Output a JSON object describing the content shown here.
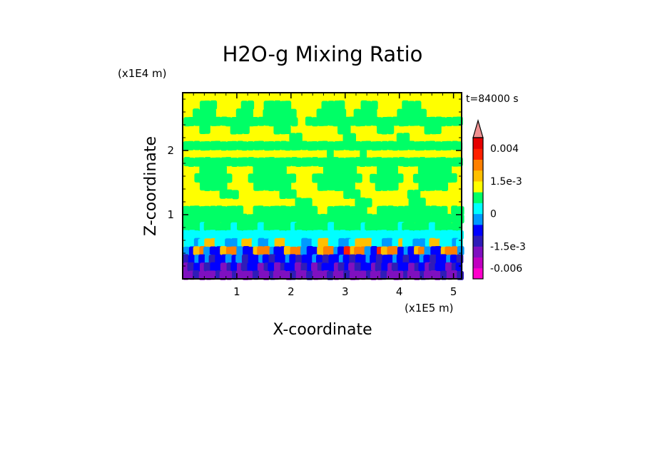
{
  "chart_data": {
    "type": "heatmap",
    "title": "H2O-g Mixing Ratio",
    "xlabel": "X-coordinate",
    "ylabel": "Z-coordinate",
    "x_unit": "(x1E5 m)",
    "y_unit": "(x1E4 m)",
    "time_label": "t=84000 s",
    "xlim": [
      0.0,
      5.15
    ],
    "ylim": [
      0.0,
      2.9
    ],
    "x_ticks": [
      1,
      2,
      3,
      4,
      5
    ],
    "x_tick_labels": [
      "1",
      "2",
      "3",
      "4",
      "5"
    ],
    "y_ticks": [
      1,
      2
    ],
    "y_tick_labels": [
      "1",
      "2"
    ],
    "colorbar": {
      "labels": [
        "0.004",
        "1.5e-3",
        "0",
        "-1.5e-3",
        "-0.006"
      ],
      "label_levels": [
        0.004,
        0.0015,
        0,
        -0.0015,
        -0.006
      ],
      "levels": [
        -0.009,
        -0.006,
        -0.003,
        -0.0015,
        -0.001,
        -0.0005,
        0,
        0.0005,
        0.001,
        0.0015,
        0.002,
        0.003,
        0.004,
        0.005
      ],
      "colors": [
        "#ff00cc",
        "#c000c0",
        "#7f10c0",
        "#2f1cb8",
        "#0000ff",
        "#0099ff",
        "#00ffff",
        "#00ff66",
        "#ffff00",
        "#ffc000",
        "#ff8000",
        "#ff2000",
        "#e60000",
        "#f09090"
      ],
      "extend_max": true
    },
    "field_pattern": [
      "....................................................",
      "...ggg.....gg..ggggg......gggg...ggg.....ggg........",
      "..gggg....ggg..gggggg....ggggg..gggg....ggggg.......",
      "ggggggggggggggggggggg..ggggggggggggggggggggggggggggg",
      "...gg....ggg.....ggg.........gg.....ggg......ggg....",
      "....................gg........gg........gg..........",
      "gggggggggggggggggggggggggggggggggggggggggggggggggggg",
      "...........................g.....g..................",
      "gggggggggggggggggggggggggggggggggggggggggggggggggggg",
      "...ggggg.....gggggg.......gggggg....gggg....gggggg..",
      "..ggggggg...ggggggggg...ggggggggg..gggggg..gggggggg.",
      "...ggggg.....ggggggg.....ggggggg....gggg....ggggg...",
      ".......ggg........ggg.........ggg.........gg........",
      ".....................ggg........ggg.......ggg.......",
      "ggggggggggg..gggggggggggg..ggggggg..ggggggggggggg.gg",
      "ggggggggggggggggggggggggggggggggggggggggggggggggggggg",
      "gggcgggggcggggcgggggcggggggcgggggcggggggcgggggcggggg",
      "cccccccccccccccccccccccccccccccccccccccccccccccccccc",
      "ccbcooccbbcoocbbcoocccbbcooccbbcoooccbbcoccbbcooccbc",
      "bnoObnnoOObnnoOObnnoOObnnoOObnroOObnroOOnbnoObnnoOOb",
      "NnbnbNnnbnbNnnbnNnnbnNnnbnNnnbnNnnbnNnnbnNnnbnNnnbnN",
      "pNnpNnnpNnpNnnpNnpNnnpNnpNnnpNnpNnnpNnpNnnpNnpNnnpNn",
      "ppNpppNppNpppNppNpppNppNpppNppNpppNppNpppNppNpppNppN"
    ],
    "field_legend": {
      "y": "yellow (~0.0005 to 0.001)",
      "g": "green (~0 to 0.0005)",
      "c": "cyan (~-0.0005 to 0)",
      "b": "light blue (~-0.001 to -0.0005)",
      "o": "orange (~0.0015 to 0.002)",
      "O": "dark orange (~0.002 to 0.003)",
      "r": "red (~0.003 to 0.004)",
      "n": "blue (~-0.0015 to -0.001)",
      "N": "navy (~-0.003 to -0.0015)",
      "p": "purple (~-0.006 to -0.003)"
    }
  }
}
